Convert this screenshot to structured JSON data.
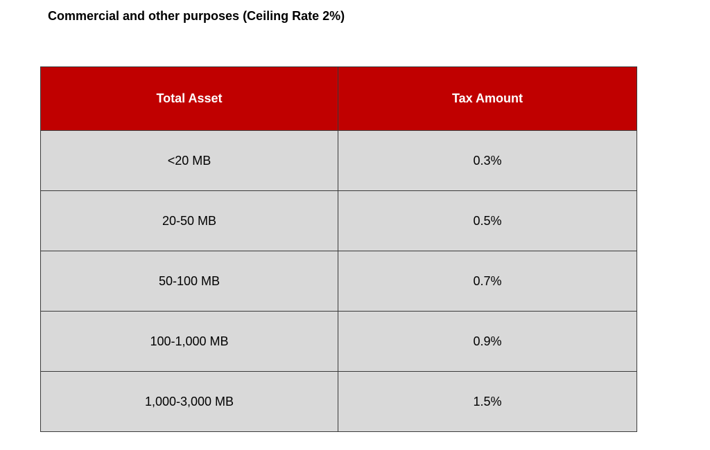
{
  "title": "Commercial and other purposes (Ceiling Rate 2%)",
  "colors": {
    "header_bg": "#c00000",
    "header_text": "#ffffff",
    "row_bg": "#d9d9d9",
    "border": "#3a3a3a"
  },
  "table": {
    "headers": [
      "Total Asset",
      "Tax Amount"
    ],
    "rows": [
      [
        "<20 MB",
        "0.3%"
      ],
      [
        "20-50 MB",
        "0.5%"
      ],
      [
        "50-100 MB",
        "0.7%"
      ],
      [
        "100-1,000 MB",
        "0.9%"
      ],
      [
        "1,000-3,000 MB",
        "1.5%"
      ]
    ]
  }
}
